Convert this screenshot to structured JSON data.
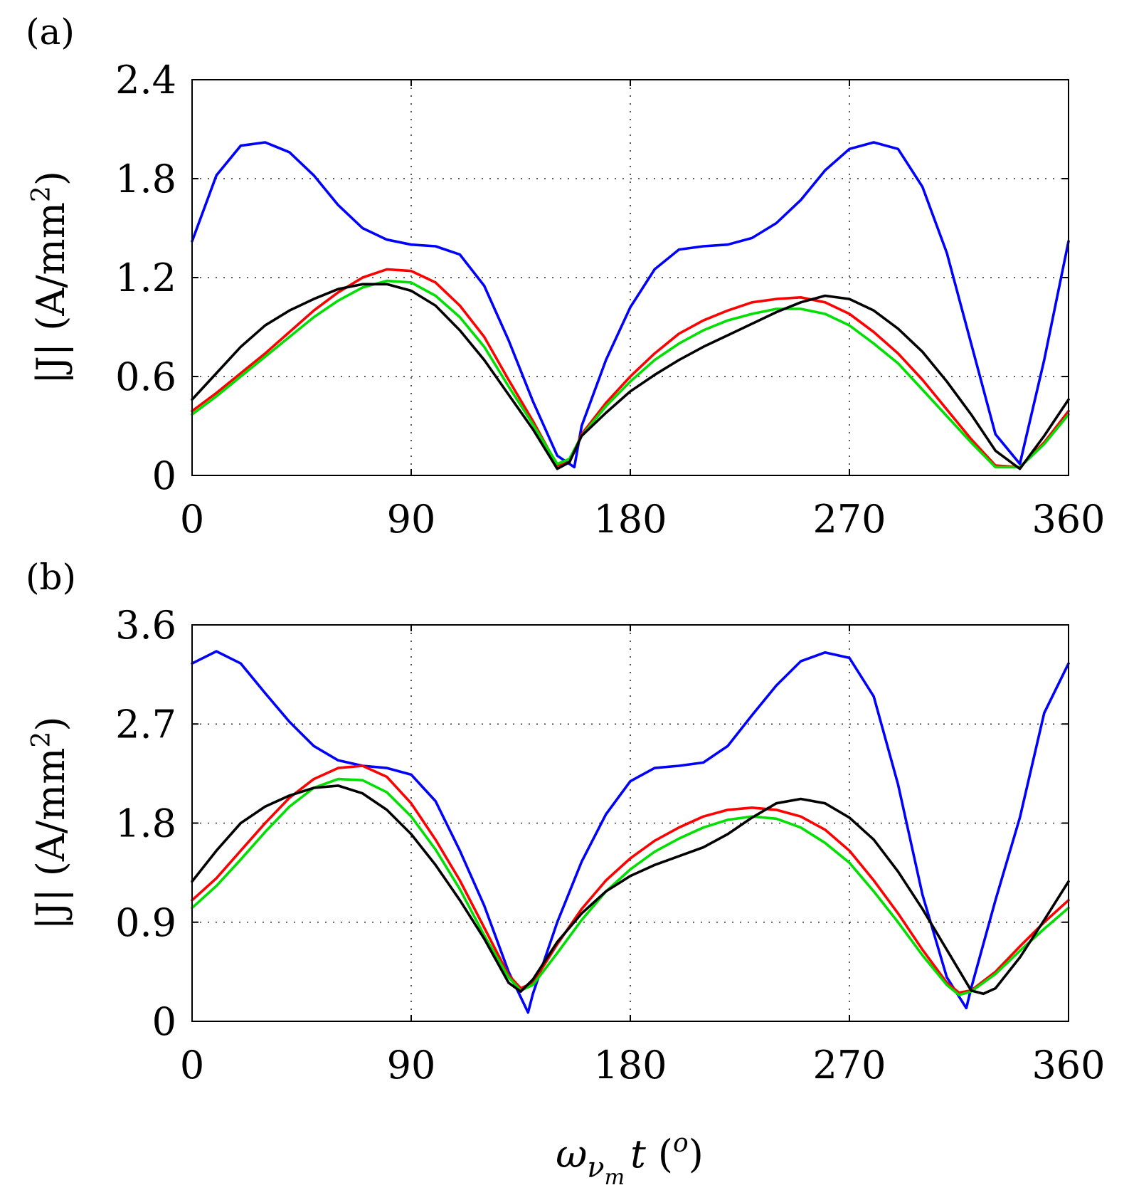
{
  "xaxis": {
    "ticks": [
      0,
      90,
      180,
      270,
      360
    ],
    "tick_labels": [
      "0",
      "90",
      "180",
      "270",
      "360"
    ],
    "label_main": "ω",
    "label_sub": "ν",
    "label_subsub": "m",
    "label_t": "t",
    "label_unit": "o"
  },
  "chart_data": [
    {
      "type": "line",
      "panel_label": "(a)",
      "xlim": [
        0,
        360
      ],
      "ylim": [
        0,
        2.4
      ],
      "yticks": [
        0,
        0.6,
        1.2,
        1.8,
        2.4
      ],
      "ytick_labels": [
        "0",
        "0.6",
        "1.2",
        "1.8",
        "2.4"
      ],
      "ylabel_main": "|J| (A/mm",
      "ylabel_sup": "2",
      "ylabel_end": ")",
      "grid": true,
      "series": [
        {
          "name": "blue",
          "color": "#0000ff",
          "x": [
            0,
            10,
            20,
            30,
            40,
            50,
            60,
            70,
            80,
            90,
            100,
            110,
            120,
            130,
            140,
            150,
            157,
            160,
            170,
            180,
            190,
            200,
            210,
            220,
            230,
            240,
            250,
            260,
            270,
            280,
            290,
            300,
            310,
            320,
            330,
            340,
            350,
            360
          ],
          "y": [
            1.42,
            1.82,
            2.0,
            2.02,
            1.96,
            1.82,
            1.64,
            1.5,
            1.43,
            1.4,
            1.39,
            1.34,
            1.15,
            0.82,
            0.45,
            0.12,
            0.05,
            0.3,
            0.7,
            1.02,
            1.25,
            1.37,
            1.39,
            1.4,
            1.44,
            1.53,
            1.67,
            1.85,
            1.98,
            2.02,
            1.98,
            1.75,
            1.35,
            0.8,
            0.25,
            0.07,
            0.7,
            1.42
          ]
        },
        {
          "name": "red",
          "color": "#ff0000",
          "x": [
            0,
            10,
            20,
            30,
            40,
            50,
            60,
            70,
            80,
            90,
            100,
            110,
            120,
            130,
            140,
            150,
            155,
            160,
            170,
            180,
            190,
            200,
            210,
            220,
            230,
            240,
            250,
            260,
            270,
            280,
            290,
            300,
            310,
            320,
            330,
            340,
            350,
            360
          ],
          "y": [
            0.39,
            0.5,
            0.62,
            0.74,
            0.87,
            1.0,
            1.11,
            1.2,
            1.25,
            1.24,
            1.17,
            1.03,
            0.84,
            0.58,
            0.33,
            0.06,
            0.08,
            0.25,
            0.44,
            0.6,
            0.74,
            0.86,
            0.94,
            1.0,
            1.05,
            1.07,
            1.08,
            1.05,
            0.98,
            0.87,
            0.74,
            0.58,
            0.4,
            0.22,
            0.06,
            0.05,
            0.2,
            0.39
          ]
        },
        {
          "name": "green",
          "color": "#00e000",
          "x": [
            0,
            10,
            20,
            30,
            40,
            50,
            60,
            70,
            80,
            90,
            100,
            110,
            120,
            130,
            140,
            150,
            155,
            160,
            170,
            180,
            190,
            200,
            210,
            220,
            230,
            240,
            250,
            260,
            270,
            280,
            290,
            300,
            310,
            320,
            330,
            340,
            350,
            360
          ],
          "y": [
            0.37,
            0.48,
            0.6,
            0.72,
            0.84,
            0.96,
            1.06,
            1.14,
            1.18,
            1.17,
            1.09,
            0.96,
            0.78,
            0.54,
            0.31,
            0.07,
            0.1,
            0.24,
            0.42,
            0.57,
            0.7,
            0.8,
            0.88,
            0.94,
            0.98,
            1.01,
            1.01,
            0.98,
            0.91,
            0.8,
            0.68,
            0.52,
            0.36,
            0.2,
            0.05,
            0.05,
            0.19,
            0.37
          ]
        },
        {
          "name": "black",
          "color": "#000000",
          "x": [
            0,
            10,
            20,
            30,
            40,
            50,
            60,
            70,
            80,
            90,
            100,
            110,
            120,
            130,
            140,
            150,
            155,
            160,
            170,
            180,
            190,
            200,
            210,
            220,
            230,
            240,
            250,
            260,
            270,
            280,
            290,
            300,
            310,
            320,
            330,
            340,
            350,
            360
          ],
          "y": [
            0.46,
            0.62,
            0.78,
            0.91,
            1.0,
            1.07,
            1.13,
            1.16,
            1.16,
            1.12,
            1.03,
            0.88,
            0.7,
            0.49,
            0.28,
            0.04,
            0.08,
            0.24,
            0.38,
            0.51,
            0.61,
            0.7,
            0.78,
            0.85,
            0.92,
            0.99,
            1.05,
            1.09,
            1.07,
            1.0,
            0.89,
            0.75,
            0.57,
            0.37,
            0.15,
            0.04,
            0.24,
            0.46
          ]
        }
      ]
    },
    {
      "type": "line",
      "panel_label": "(b)",
      "xlim": [
        0,
        360
      ],
      "ylim": [
        0,
        3.6
      ],
      "yticks": [
        0,
        0.9,
        1.8,
        2.7,
        3.6
      ],
      "ytick_labels": [
        "0",
        "0.9",
        "1.8",
        "2.7",
        "3.6"
      ],
      "ylabel_main": "|J| (A/mm",
      "ylabel_sup": "2",
      "ylabel_end": ")",
      "grid": true,
      "series": [
        {
          "name": "blue",
          "color": "#0000ff",
          "x": [
            0,
            10,
            20,
            30,
            40,
            50,
            60,
            70,
            80,
            90,
            100,
            110,
            120,
            130,
            138,
            140,
            150,
            160,
            170,
            180,
            190,
            200,
            210,
            220,
            230,
            240,
            250,
            260,
            270,
            280,
            290,
            300,
            310,
            318,
            320,
            330,
            340,
            350,
            360
          ],
          "y": [
            3.25,
            3.36,
            3.25,
            2.98,
            2.72,
            2.5,
            2.37,
            2.32,
            2.3,
            2.24,
            2.0,
            1.55,
            1.05,
            0.45,
            0.08,
            0.25,
            0.9,
            1.45,
            1.88,
            2.18,
            2.3,
            2.32,
            2.35,
            2.5,
            2.78,
            3.05,
            3.27,
            3.35,
            3.3,
            2.95,
            2.15,
            1.15,
            0.4,
            0.12,
            0.3,
            1.1,
            1.85,
            2.8,
            3.25
          ]
        },
        {
          "name": "red",
          "color": "#ff0000",
          "x": [
            0,
            10,
            20,
            30,
            40,
            50,
            60,
            70,
            80,
            90,
            100,
            110,
            120,
            130,
            135,
            140,
            150,
            160,
            170,
            180,
            190,
            200,
            210,
            220,
            230,
            240,
            250,
            260,
            270,
            280,
            290,
            300,
            310,
            315,
            320,
            330,
            340,
            350,
            360
          ],
          "y": [
            1.1,
            1.3,
            1.55,
            1.8,
            2.03,
            2.2,
            2.3,
            2.32,
            2.22,
            1.98,
            1.65,
            1.28,
            0.85,
            0.42,
            0.3,
            0.35,
            0.7,
            1.02,
            1.28,
            1.48,
            1.64,
            1.76,
            1.86,
            1.92,
            1.94,
            1.92,
            1.86,
            1.74,
            1.55,
            1.28,
            0.98,
            0.65,
            0.35,
            0.26,
            0.28,
            0.45,
            0.68,
            0.9,
            1.1
          ]
        },
        {
          "name": "green",
          "color": "#00e000",
          "x": [
            0,
            10,
            20,
            30,
            40,
            50,
            60,
            70,
            80,
            90,
            100,
            110,
            120,
            130,
            135,
            140,
            150,
            160,
            170,
            180,
            190,
            200,
            210,
            220,
            230,
            240,
            250,
            260,
            270,
            280,
            290,
            300,
            310,
            315,
            320,
            330,
            340,
            350,
            360
          ],
          "y": [
            1.03,
            1.23,
            1.47,
            1.72,
            1.95,
            2.12,
            2.2,
            2.19,
            2.08,
            1.86,
            1.56,
            1.2,
            0.78,
            0.4,
            0.28,
            0.33,
            0.62,
            0.92,
            1.18,
            1.38,
            1.54,
            1.66,
            1.76,
            1.83,
            1.86,
            1.84,
            1.76,
            1.62,
            1.44,
            1.18,
            0.9,
            0.6,
            0.33,
            0.24,
            0.27,
            0.43,
            0.64,
            0.84,
            1.03
          ]
        },
        {
          "name": "black",
          "color": "#000000",
          "x": [
            0,
            10,
            20,
            30,
            40,
            50,
            60,
            70,
            80,
            90,
            100,
            110,
            120,
            130,
            135,
            140,
            150,
            160,
            170,
            180,
            190,
            200,
            210,
            220,
            230,
            240,
            250,
            260,
            270,
            280,
            290,
            300,
            310,
            320,
            325,
            330,
            340,
            350,
            360
          ],
          "y": [
            1.27,
            1.55,
            1.8,
            1.95,
            2.05,
            2.12,
            2.14,
            2.07,
            1.92,
            1.7,
            1.42,
            1.1,
            0.75,
            0.35,
            0.27,
            0.38,
            0.72,
            0.98,
            1.18,
            1.32,
            1.42,
            1.5,
            1.58,
            1.7,
            1.85,
            1.98,
            2.02,
            1.98,
            1.85,
            1.65,
            1.36,
            1.02,
            0.65,
            0.28,
            0.25,
            0.3,
            0.58,
            0.92,
            1.27
          ]
        }
      ]
    }
  ]
}
